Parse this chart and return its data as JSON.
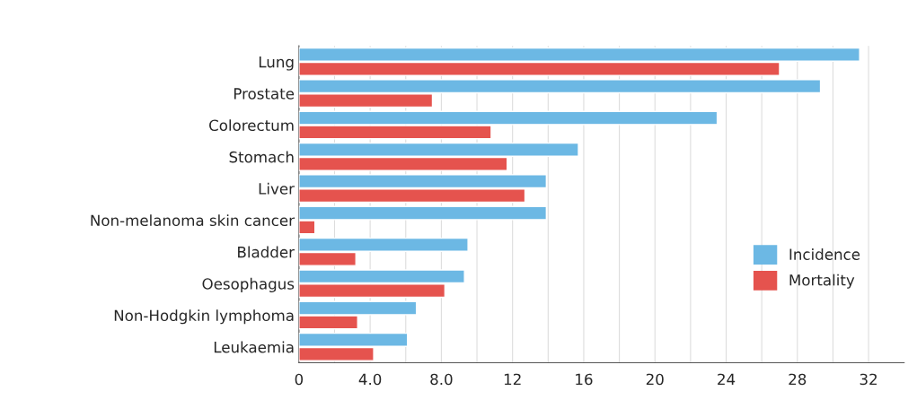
{
  "chart_data": {
    "type": "bar",
    "orientation": "horizontal",
    "categories": [
      "Lung",
      "Prostate",
      "Colorectum",
      "Stomach",
      "Liver",
      "Non-melanoma skin cancer",
      "Bladder",
      "Oesophagus",
      "Non-Hodgkin lymphoma",
      "Leukaemia"
    ],
    "series": [
      {
        "name": "Incidence",
        "color": "#6cb8e4",
        "values": [
          31.5,
          29.3,
          23.5,
          15.7,
          13.9,
          13.9,
          9.5,
          9.3,
          6.6,
          6.1
        ]
      },
      {
        "name": "Mortality",
        "color": "#e5534e",
        "values": [
          27.0,
          7.5,
          10.8,
          11.7,
          12.7,
          0.9,
          3.2,
          8.2,
          3.3,
          4.2
        ]
      }
    ],
    "xlim": [
      0,
      34
    ],
    "xticks": [
      0,
      {
        "value": 2,
        "label": null
      },
      {
        "value": 4,
        "label": "4.0"
      },
      {
        "value": 6,
        "label": null
      },
      {
        "value": 8,
        "label": "8.0"
      },
      {
        "value": 10,
        "label": null
      },
      12,
      {
        "value": 14,
        "label": null
      },
      16,
      {
        "value": 18,
        "label": null
      },
      20,
      {
        "value": 22,
        "label": null
      },
      24,
      {
        "value": 26,
        "label": null
      },
      28,
      {
        "value": 30,
        "label": null
      },
      32
    ],
    "grid": "x",
    "legend": "right"
  }
}
